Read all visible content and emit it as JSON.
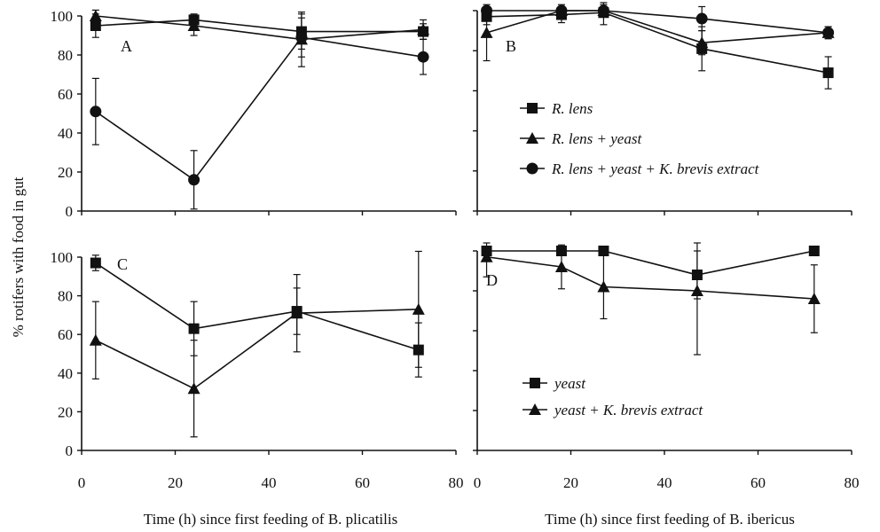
{
  "figure": {
    "ylabel": "% rotifers with food in gut",
    "xlabel_left": "Time (h) since first feeding of B. plicatilis",
    "xlabel_right": "Time (h) since first feeding of B. ibericus"
  },
  "chart_data": [
    {
      "panel": "A",
      "type": "line",
      "xlim": [
        0,
        80
      ],
      "ylim": [
        0,
        100
      ],
      "yticks": [
        0,
        20,
        40,
        60,
        80,
        100
      ],
      "xticks": [],
      "series": [
        {
          "marker": "square",
          "x": [
            3,
            24,
            47,
            73
          ],
          "y": [
            95,
            98,
            92,
            92
          ],
          "err": [
            6,
            3,
            9,
            4
          ]
        },
        {
          "marker": "triangle",
          "x": [
            3,
            24,
            47,
            73
          ],
          "y": [
            100,
            95,
            88,
            93
          ],
          "err": [
            3,
            5,
            14,
            5
          ]
        },
        {
          "marker": "circle",
          "x": [
            3,
            24,
            47,
            73
          ],
          "y": [
            51,
            16,
            89,
            79
          ],
          "err": [
            17,
            15,
            10,
            9
          ]
        }
      ]
    },
    {
      "panel": "B",
      "type": "line",
      "xlim": [
        0,
        80
      ],
      "ylim": [
        0,
        100
      ],
      "yticks": [],
      "xticks": [],
      "legend": [
        {
          "marker": "square",
          "label": "R. lens"
        },
        {
          "marker": "triangle",
          "label": "R. lens + yeast"
        },
        {
          "marker": "circle",
          "label": "R. lens + yeast + K. brevis extract"
        }
      ],
      "series": [
        {
          "marker": "square",
          "x": [
            2,
            18,
            27,
            48,
            75
          ],
          "y": [
            97,
            98,
            99,
            81,
            69
          ],
          "err": [
            4,
            4,
            6,
            11,
            8
          ]
        },
        {
          "marker": "triangle",
          "x": [
            2,
            18,
            27,
            48,
            75
          ],
          "y": [
            89,
            100,
            100,
            84,
            89
          ],
          "err": [
            14,
            3,
            3,
            6,
            3
          ]
        },
        {
          "marker": "circle",
          "x": [
            2,
            18,
            27,
            48,
            75
          ],
          "y": [
            100,
            100,
            100,
            96,
            89
          ],
          "err": [
            2,
            2,
            2,
            6,
            3
          ]
        }
      ]
    },
    {
      "panel": "C",
      "type": "line",
      "xlim": [
        0,
        80
      ],
      "ylim": [
        0,
        100
      ],
      "yticks": [
        0,
        20,
        40,
        60,
        80,
        100
      ],
      "xticks": [
        0,
        20,
        40,
        60,
        80
      ],
      "series": [
        {
          "marker": "square",
          "x": [
            3,
            24,
            46,
            72
          ],
          "y": [
            97,
            63,
            72,
            52
          ],
          "err": [
            4,
            14,
            12,
            14
          ]
        },
        {
          "marker": "triangle",
          "x": [
            3,
            24,
            46,
            72
          ],
          "y": [
            57,
            32,
            71,
            73
          ],
          "err": [
            20,
            25,
            20,
            30
          ]
        }
      ]
    },
    {
      "panel": "D",
      "type": "line",
      "xlim": [
        0,
        80
      ],
      "ylim": [
        0,
        100
      ],
      "yticks": [],
      "xticks": [
        0,
        20,
        40,
        60,
        80
      ],
      "legend": [
        {
          "marker": "square",
          "label": "yeast"
        },
        {
          "marker": "triangle",
          "label": "yeast + K. brevis extract"
        }
      ],
      "series": [
        {
          "marker": "square",
          "x": [
            2,
            18,
            27,
            47,
            72
          ],
          "y": [
            100,
            100,
            100,
            88,
            100
          ],
          "err": [
            0,
            0,
            0,
            12,
            0
          ]
        },
        {
          "marker": "triangle",
          "x": [
            2,
            18,
            27,
            47,
            72
          ],
          "y": [
            97,
            92,
            82,
            80,
            76
          ],
          "err": [
            10,
            11,
            16,
            32,
            17
          ]
        }
      ]
    }
  ]
}
